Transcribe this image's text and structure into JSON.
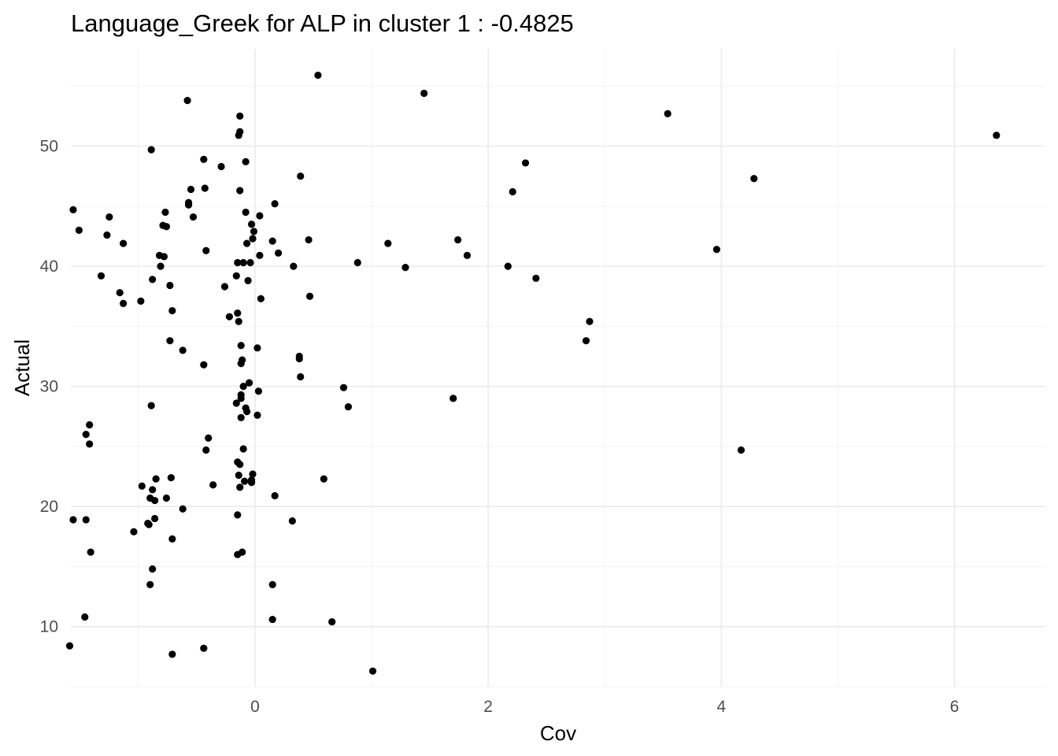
{
  "chart_data": {
    "type": "scatter",
    "title": "Language_Greek for ALP in cluster 1 : -0.4825",
    "xlabel": "Cov",
    "ylabel": "Actual",
    "xlim": [
      -1.58,
      6.78
    ],
    "ylim": [
      5.0,
      58.1
    ],
    "x_ticks": [
      0,
      2,
      4,
      6
    ],
    "x_tick_labels": [
      "0",
      "2",
      "4",
      "6"
    ],
    "x_minor_ticks": [
      -1,
      1,
      3,
      5
    ],
    "y_ticks": [
      10,
      20,
      30,
      40,
      50
    ],
    "y_tick_labels": [
      "10",
      "20",
      "30",
      "40",
      "50"
    ],
    "y_minor_ticks": [
      5,
      15,
      25,
      35,
      45,
      55
    ],
    "grid": true,
    "point_color": "#000000",
    "points": [
      {
        "x": 0.54,
        "y": 55.9
      },
      {
        "x": 1.45,
        "y": 54.4
      },
      {
        "x": -0.58,
        "y": 53.8
      },
      {
        "x": -0.13,
        "y": 52.5
      },
      {
        "x": 3.54,
        "y": 52.7
      },
      {
        "x": -0.13,
        "y": 51.2
      },
      {
        "x": -0.14,
        "y": 50.9
      },
      {
        "x": 6.36,
        "y": 50.9
      },
      {
        "x": -0.89,
        "y": 49.7
      },
      {
        "x": -0.44,
        "y": 48.9
      },
      {
        "x": -0.08,
        "y": 48.7
      },
      {
        "x": 2.32,
        "y": 48.6
      },
      {
        "x": -0.29,
        "y": 48.3
      },
      {
        "x": 0.39,
        "y": 47.5
      },
      {
        "x": 4.28,
        "y": 47.3
      },
      {
        "x": -0.55,
        "y": 46.4
      },
      {
        "x": -0.43,
        "y": 46.5
      },
      {
        "x": -0.13,
        "y": 46.3
      },
      {
        "x": 2.21,
        "y": 46.2
      },
      {
        "x": -0.57,
        "y": 45.3
      },
      {
        "x": -0.57,
        "y": 45.1
      },
      {
        "x": 0.17,
        "y": 45.2
      },
      {
        "x": -1.56,
        "y": 44.7
      },
      {
        "x": -0.77,
        "y": 44.5
      },
      {
        "x": -0.08,
        "y": 44.5
      },
      {
        "x": 0.04,
        "y": 44.2
      },
      {
        "x": -1.25,
        "y": 44.1
      },
      {
        "x": -0.53,
        "y": 44.1
      },
      {
        "x": -0.03,
        "y": 43.5
      },
      {
        "x": -0.79,
        "y": 43.4
      },
      {
        "x": -0.76,
        "y": 43.3
      },
      {
        "x": -1.51,
        "y": 43.0
      },
      {
        "x": -0.01,
        "y": 42.9
      },
      {
        "x": -1.27,
        "y": 42.6
      },
      {
        "x": -0.02,
        "y": 42.3
      },
      {
        "x": 0.46,
        "y": 42.2
      },
      {
        "x": 1.74,
        "y": 42.2
      },
      {
        "x": 0.15,
        "y": 42.1
      },
      {
        "x": -0.07,
        "y": 41.9
      },
      {
        "x": 1.14,
        "y": 41.9
      },
      {
        "x": -1.13,
        "y": 41.9
      },
      {
        "x": 3.96,
        "y": 41.4
      },
      {
        "x": -0.42,
        "y": 41.3
      },
      {
        "x": 0.2,
        "y": 41.1
      },
      {
        "x": 1.82,
        "y": 40.9
      },
      {
        "x": 0.04,
        "y": 40.9
      },
      {
        "x": -0.82,
        "y": 40.9
      },
      {
        "x": -0.78,
        "y": 40.8
      },
      {
        "x": -0.15,
        "y": 40.3
      },
      {
        "x": -0.1,
        "y": 40.3
      },
      {
        "x": -0.04,
        "y": 40.3
      },
      {
        "x": 0.88,
        "y": 40.3
      },
      {
        "x": -0.81,
        "y": 40.0
      },
      {
        "x": 2.17,
        "y": 40.0
      },
      {
        "x": 0.33,
        "y": 40.0
      },
      {
        "x": 1.29,
        "y": 39.9
      },
      {
        "x": -1.32,
        "y": 39.2
      },
      {
        "x": -0.16,
        "y": 39.2
      },
      {
        "x": 2.41,
        "y": 39.0
      },
      {
        "x": -0.88,
        "y": 38.9
      },
      {
        "x": -0.06,
        "y": 38.8
      },
      {
        "x": -0.73,
        "y": 38.4
      },
      {
        "x": -0.26,
        "y": 38.3
      },
      {
        "x": -1.16,
        "y": 37.8
      },
      {
        "x": 0.47,
        "y": 37.5
      },
      {
        "x": 0.05,
        "y": 37.3
      },
      {
        "x": -0.98,
        "y": 37.1
      },
      {
        "x": -1.13,
        "y": 36.9
      },
      {
        "x": -0.71,
        "y": 36.3
      },
      {
        "x": -0.15,
        "y": 36.1
      },
      {
        "x": -0.22,
        "y": 35.8
      },
      {
        "x": -0.14,
        "y": 35.4
      },
      {
        "x": 2.87,
        "y": 35.4
      },
      {
        "x": 2.84,
        "y": 33.8
      },
      {
        "x": -0.73,
        "y": 33.8
      },
      {
        "x": -0.12,
        "y": 33.4
      },
      {
        "x": 0.02,
        "y": 33.2
      },
      {
        "x": -0.62,
        "y": 33.0
      },
      {
        "x": 0.38,
        "y": 32.5
      },
      {
        "x": 0.38,
        "y": 32.3
      },
      {
        "x": -0.11,
        "y": 32.2
      },
      {
        "x": -0.12,
        "y": 31.9
      },
      {
        "x": -0.44,
        "y": 31.8
      },
      {
        "x": 0.39,
        "y": 30.8
      },
      {
        "x": -0.05,
        "y": 30.3
      },
      {
        "x": -0.1,
        "y": 30.0
      },
      {
        "x": 0.76,
        "y": 29.9
      },
      {
        "x": 0.03,
        "y": 29.6
      },
      {
        "x": -0.12,
        "y": 29.3
      },
      {
        "x": -0.12,
        "y": 29.0
      },
      {
        "x": 1.7,
        "y": 29.0
      },
      {
        "x": -0.16,
        "y": 28.6
      },
      {
        "x": -0.89,
        "y": 28.4
      },
      {
        "x": 0.8,
        "y": 28.3
      },
      {
        "x": -0.08,
        "y": 28.2
      },
      {
        "x": -0.07,
        "y": 27.9
      },
      {
        "x": 0.02,
        "y": 27.6
      },
      {
        "x": -0.12,
        "y": 27.4
      },
      {
        "x": -1.42,
        "y": 26.8
      },
      {
        "x": -1.45,
        "y": 26.0
      },
      {
        "x": -0.4,
        "y": 25.7
      },
      {
        "x": -1.42,
        "y": 25.2
      },
      {
        "x": -0.1,
        "y": 24.8
      },
      {
        "x": -0.42,
        "y": 24.7
      },
      {
        "x": 4.17,
        "y": 24.7
      },
      {
        "x": -0.15,
        "y": 23.7
      },
      {
        "x": -0.13,
        "y": 23.5
      },
      {
        "x": -0.02,
        "y": 22.7
      },
      {
        "x": -0.14,
        "y": 22.6
      },
      {
        "x": -0.72,
        "y": 22.4
      },
      {
        "x": 0.59,
        "y": 22.3
      },
      {
        "x": -0.85,
        "y": 22.3
      },
      {
        "x": -0.03,
        "y": 22.2
      },
      {
        "x": -0.09,
        "y": 22.1
      },
      {
        "x": -0.03,
        "y": 22.0
      },
      {
        "x": -0.36,
        "y": 21.8
      },
      {
        "x": -0.97,
        "y": 21.7
      },
      {
        "x": -0.13,
        "y": 21.6
      },
      {
        "x": -0.88,
        "y": 21.4
      },
      {
        "x": 0.17,
        "y": 20.9
      },
      {
        "x": -0.76,
        "y": 20.7
      },
      {
        "x": -0.9,
        "y": 20.7
      },
      {
        "x": -0.86,
        "y": 20.5
      },
      {
        "x": -0.62,
        "y": 19.8
      },
      {
        "x": -0.15,
        "y": 19.3
      },
      {
        "x": -0.86,
        "y": 19.0
      },
      {
        "x": -1.56,
        "y": 18.9
      },
      {
        "x": -1.45,
        "y": 18.9
      },
      {
        "x": 0.32,
        "y": 18.8
      },
      {
        "x": -0.92,
        "y": 18.6
      },
      {
        "x": -0.91,
        "y": 18.5
      },
      {
        "x": -1.04,
        "y": 17.9
      },
      {
        "x": -0.71,
        "y": 17.3
      },
      {
        "x": -1.41,
        "y": 16.2
      },
      {
        "x": -0.11,
        "y": 16.2
      },
      {
        "x": -0.15,
        "y": 16.0
      },
      {
        "x": -0.88,
        "y": 14.8
      },
      {
        "x": -0.9,
        "y": 13.5
      },
      {
        "x": 0.15,
        "y": 13.5
      },
      {
        "x": -1.46,
        "y": 10.8
      },
      {
        "x": 0.15,
        "y": 10.6
      },
      {
        "x": 0.66,
        "y": 10.4
      },
      {
        "x": -1.59,
        "y": 8.4
      },
      {
        "x": -0.44,
        "y": 8.2
      },
      {
        "x": -0.71,
        "y": 7.7
      },
      {
        "x": 1.01,
        "y": 6.3
      }
    ]
  }
}
